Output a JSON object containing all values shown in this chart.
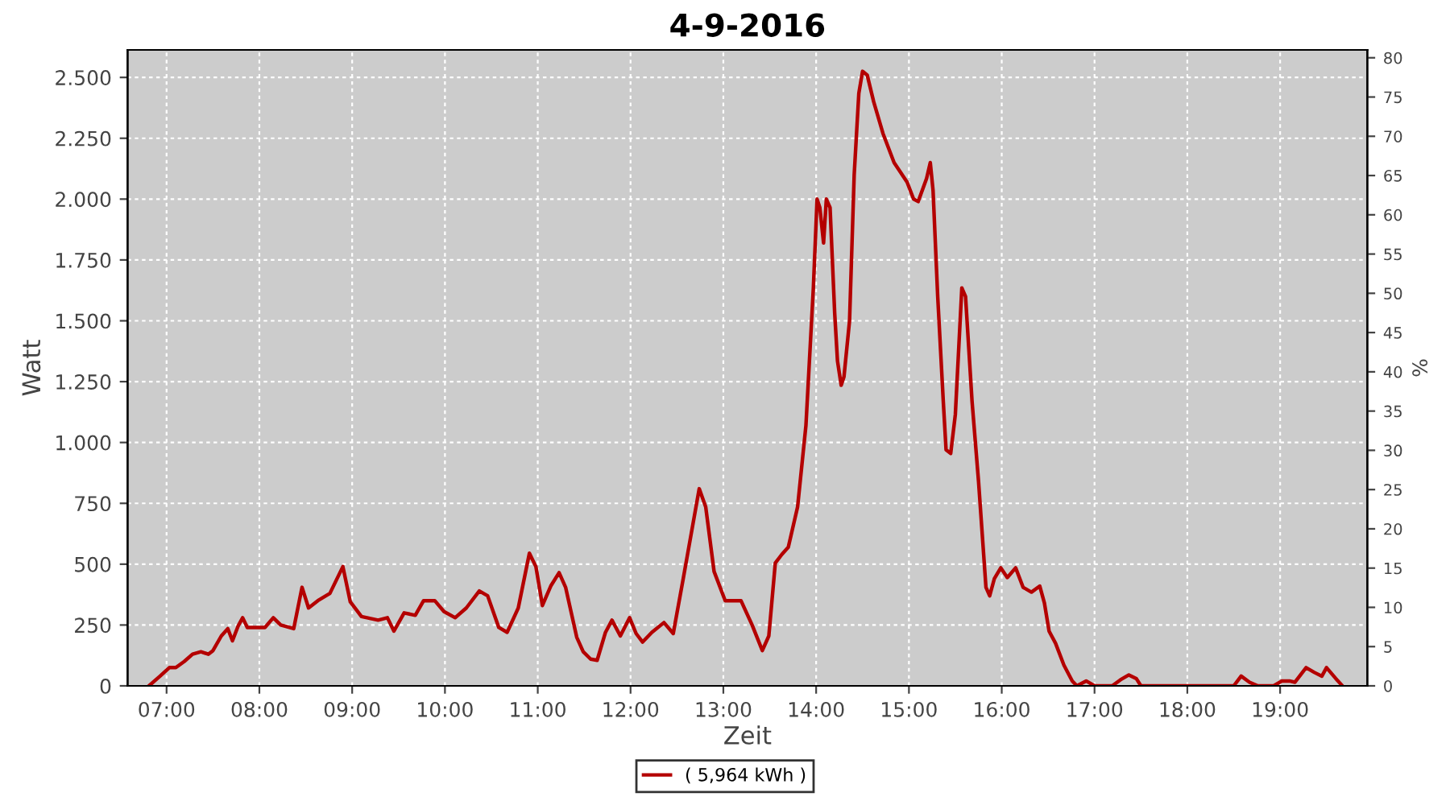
{
  "chart_data": {
    "type": "line",
    "title": "4-9-2016",
    "xlabel": "Zeit",
    "ylabel": "Watt",
    "y2label": "%",
    "xlim": [
      6.58,
      19.94
    ],
    "xticks": [
      {
        "value": 7,
        "label": "07:00"
      },
      {
        "value": 8,
        "label": "08:00"
      },
      {
        "value": 9,
        "label": "09:00"
      },
      {
        "value": 10,
        "label": "10:00"
      },
      {
        "value": 11,
        "label": "11:00"
      },
      {
        "value": 12,
        "label": "12:00"
      },
      {
        "value": 13,
        "label": "13:00"
      },
      {
        "value": 14,
        "label": "14:00"
      },
      {
        "value": 15,
        "label": "15:00"
      },
      {
        "value": 16,
        "label": "16:00"
      },
      {
        "value": 17,
        "label": "17:00"
      },
      {
        "value": 18,
        "label": "18:00"
      },
      {
        "value": 19,
        "label": "19:00"
      }
    ],
    "ylim": [
      0,
      2613
    ],
    "yticks": [
      0,
      {
        "value": 250,
        "label": "250"
      },
      {
        "value": 500,
        "label": "500"
      },
      {
        "value": 750,
        "label": "750"
      },
      {
        "value": 1000,
        "label": "1.000"
      },
      {
        "value": 1250,
        "label": "1.250"
      },
      {
        "value": 1500,
        "label": "1.500"
      },
      {
        "value": 1750,
        "label": "1.750"
      },
      {
        "value": 2000,
        "label": "2.000"
      },
      {
        "value": 2250,
        "label": "2.250"
      },
      {
        "value": 2500,
        "label": "2.500"
      }
    ],
    "y2lim": [
      0,
      81
    ],
    "y2ticks": [
      0,
      5,
      10,
      15,
      20,
      25,
      30,
      35,
      40,
      45,
      50,
      55,
      60,
      65,
      70,
      75,
      80
    ],
    "grid": true,
    "legend": "bottom",
    "line_style": "solid",
    "marker": "none",
    "series": [
      {
        "name": "( 5,964 kWh )",
        "color": "#b40000",
        "x": [
          6.81,
          6.93,
          7.03,
          7.1,
          7.19,
          7.28,
          7.37,
          7.45,
          7.5,
          7.59,
          7.66,
          7.71,
          7.77,
          7.82,
          7.87,
          7.97,
          8.06,
          8.15,
          8.23,
          8.37,
          8.46,
          8.53,
          8.63,
          8.76,
          8.9,
          8.98,
          9.1,
          9.28,
          9.38,
          9.45,
          9.56,
          9.68,
          9.77,
          9.89,
          9.99,
          10.11,
          10.23,
          10.37,
          10.46,
          10.58,
          10.67,
          10.79,
          10.91,
          10.98,
          11.05,
          11.14,
          11.23,
          11.3,
          11.42,
          11.49,
          11.57,
          11.64,
          11.73,
          11.8,
          11.89,
          11.99,
          12.06,
          12.13,
          12.23,
          12.36,
          12.46,
          12.57,
          12.74,
          12.81,
          12.9,
          13.02,
          13.19,
          13.31,
          13.42,
          13.49,
          13.56,
          13.63,
          13.7,
          13.8,
          13.89,
          13.97,
          14.01,
          14.04,
          14.08,
          14.11,
          14.15,
          14.2,
          14.23,
          14.27,
          14.3,
          14.36,
          14.41,
          14.46,
          14.5,
          14.55,
          14.62,
          14.72,
          14.84,
          14.98,
          15.05,
          15.1,
          15.19,
          15.23,
          15.26,
          15.31,
          15.37,
          15.4,
          15.45,
          15.5,
          15.57,
          15.61,
          15.68,
          15.75,
          15.83,
          15.87,
          15.92,
          15.99,
          16.06,
          16.15,
          16.23,
          16.32,
          16.41,
          16.46,
          16.51,
          16.58,
          16.67,
          16.76,
          16.81,
          16.91,
          17.0,
          17.19,
          17.28,
          17.37,
          17.45,
          17.5,
          18.5,
          18.58,
          18.67,
          18.76,
          18.93,
          19.02,
          19.1,
          19.16,
          19.28,
          19.37,
          19.45,
          19.5,
          19.6,
          19.66
        ],
        "values": [
          0,
          40,
          75,
          75,
          100,
          130,
          140,
          130,
          145,
          205,
          235,
          185,
          245,
          280,
          240,
          240,
          240,
          280,
          250,
          235,
          405,
          320,
          350,
          380,
          490,
          345,
          285,
          270,
          280,
          225,
          300,
          290,
          350,
          350,
          305,
          280,
          320,
          390,
          370,
          240,
          220,
          320,
          545,
          490,
          330,
          410,
          465,
          405,
          200,
          140,
          110,
          105,
          220,
          270,
          205,
          280,
          215,
          180,
          220,
          260,
          215,
          445,
          810,
          735,
          470,
          350,
          350,
          250,
          145,
          205,
          505,
          540,
          570,
          735,
          1070,
          1635,
          2000,
          1965,
          1820,
          2000,
          1965,
          1530,
          1335,
          1235,
          1270,
          1500,
          2100,
          2435,
          2525,
          2510,
          2400,
          2270,
          2150,
          2070,
          2000,
          1990,
          2085,
          2150,
          2035,
          1600,
          1170,
          970,
          955,
          1115,
          1635,
          1600,
          1170,
          840,
          405,
          370,
          440,
          485,
          445,
          485,
          405,
          385,
          410,
          340,
          225,
          175,
          85,
          20,
          0,
          20,
          0,
          0,
          25,
          45,
          30,
          0,
          0,
          40,
          15,
          0,
          0,
          20,
          20,
          15,
          75,
          55,
          40,
          75,
          30,
          5
        ]
      }
    ]
  }
}
